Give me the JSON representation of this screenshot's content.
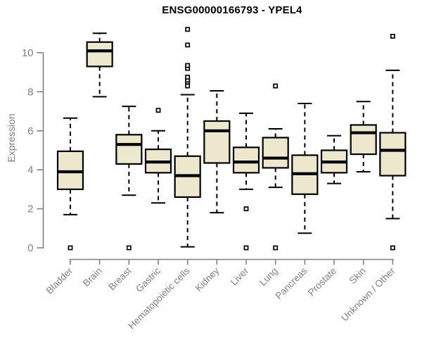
{
  "chart_data": {
    "type": "boxplot",
    "title": "ENSG00000166793 - YPEL4",
    "xlabel": "",
    "ylabel": "Expression",
    "ylim": [
      0,
      10
    ],
    "yticks": [
      0,
      2,
      4,
      6,
      8,
      10
    ],
    "grid": false,
    "legend": "none",
    "axis_color": "#808080",
    "box_fill_color": "#EDE7CE",
    "box_border_color": "#000000",
    "median_color": "#000000",
    "categories": [
      "Bladder",
      "Brain",
      "Breast",
      "Gastric",
      "Hematopoietic cells",
      "Kidney",
      "Liver",
      "Lung",
      "Pancreas",
      "Prostate",
      "Skin",
      "Unknown / Other"
    ],
    "series": [
      {
        "name": "Bladder",
        "whisker_low": 1.7,
        "q1": 3.0,
        "median": 3.9,
        "q3": 4.95,
        "whisker_high": 6.65,
        "outliers": [
          0.0
        ]
      },
      {
        "name": "Brain",
        "whisker_low": 7.75,
        "q1": 9.3,
        "median": 10.1,
        "q3": 10.55,
        "whisker_high": 11.0,
        "outliers": []
      },
      {
        "name": "Breast",
        "whisker_low": 2.7,
        "q1": 4.3,
        "median": 5.3,
        "q3": 5.8,
        "whisker_high": 7.25,
        "outliers": [
          0.0
        ]
      },
      {
        "name": "Gastric",
        "whisker_low": 2.3,
        "q1": 3.85,
        "median": 4.4,
        "q3": 5.05,
        "whisker_high": 6.0,
        "outliers": [
          7.05
        ]
      },
      {
        "name": "Hematopoietic cells",
        "whisker_low": 0.05,
        "q1": 2.6,
        "median": 3.7,
        "q3": 4.7,
        "whisker_high": 7.85,
        "outliers": [
          8.3,
          8.5,
          8.6,
          8.75,
          9.2,
          9.35,
          10.4,
          11.2
        ]
      },
      {
        "name": "Kidney",
        "whisker_low": 1.8,
        "q1": 4.35,
        "median": 6.0,
        "q3": 6.5,
        "whisker_high": 8.05,
        "outliers": []
      },
      {
        "name": "Liver",
        "whisker_low": 3.0,
        "q1": 3.85,
        "median": 4.4,
        "q3": 5.15,
        "whisker_high": 6.9,
        "outliers": [
          2.0,
          0.0
        ]
      },
      {
        "name": "Lung",
        "whisker_low": 3.1,
        "q1": 4.1,
        "median": 4.6,
        "q3": 5.65,
        "whisker_high": 6.1,
        "outliers": [
          8.3,
          0.0
        ]
      },
      {
        "name": "Pancreas",
        "whisker_low": 0.75,
        "q1": 2.75,
        "median": 3.8,
        "q3": 4.75,
        "whisker_high": 7.4,
        "outliers": []
      },
      {
        "name": "Prostate",
        "whisker_low": 3.3,
        "q1": 3.85,
        "median": 4.4,
        "q3": 5.0,
        "whisker_high": 5.75,
        "outliers": []
      },
      {
        "name": "Skin",
        "whisker_low": 3.9,
        "q1": 4.8,
        "median": 5.9,
        "q3": 6.3,
        "whisker_high": 7.5,
        "outliers": []
      },
      {
        "name": "Unknown / Other",
        "whisker_low": 1.5,
        "q1": 3.7,
        "median": 5.0,
        "q3": 5.9,
        "whisker_high": 9.1,
        "outliers": [
          10.85,
          0.0
        ]
      }
    ]
  }
}
